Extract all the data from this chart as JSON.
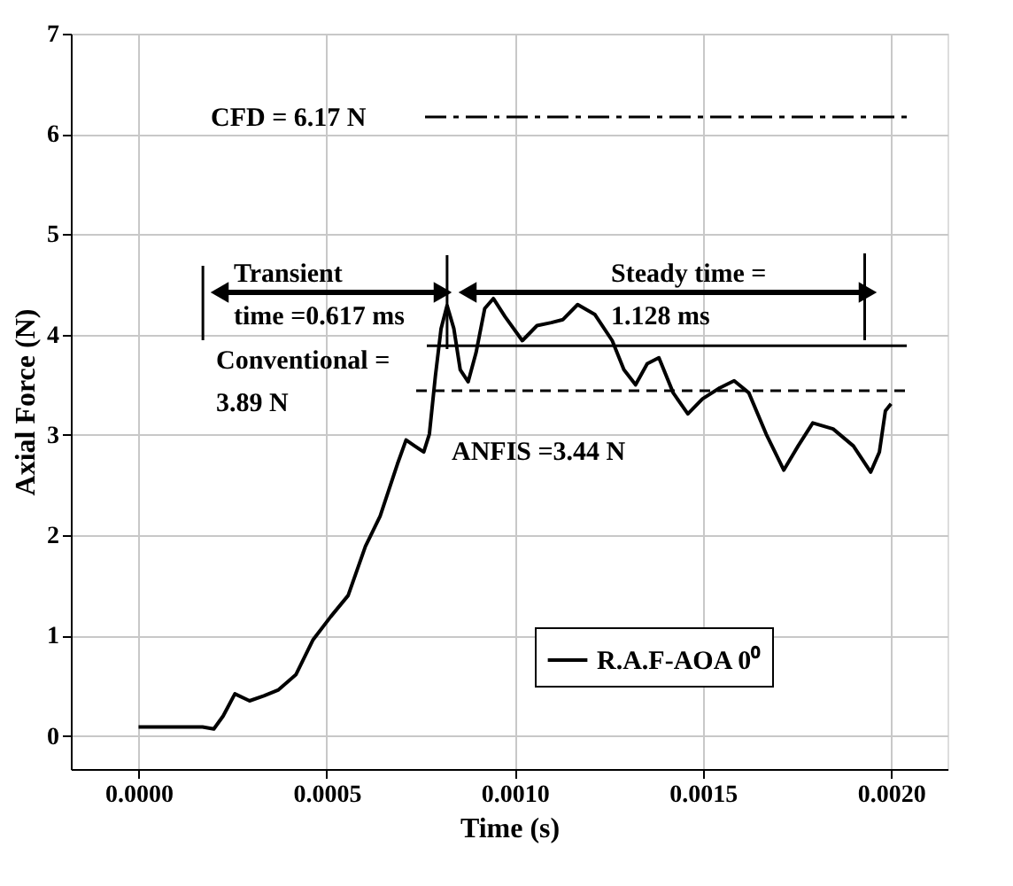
{
  "chart_data": {
    "type": "line",
    "xlabel": "Time (s)",
    "ylabel": "Axial Force (N)",
    "xlim": [
      -0.00018,
      0.00215
    ],
    "ylim": [
      -0.33,
      7
    ],
    "xticks": [
      {
        "value": 0,
        "label": "0.0000"
      },
      {
        "value": 0.0005,
        "label": "0.0005"
      },
      {
        "value": 0.001,
        "label": "0.0010"
      },
      {
        "value": 0.0015,
        "label": "0.0015"
      },
      {
        "value": 0.002,
        "label": "0.0020"
      }
    ],
    "yticks": [
      0,
      1,
      2,
      3,
      4,
      5,
      6,
      7
    ],
    "grid": true,
    "legend": "bottom right",
    "line_style": "solid",
    "marker": "none",
    "series": [
      {
        "name": "R.A.F-AOA 0⁰",
        "color": "#000000",
        "x": [
          0,
          0.00017,
          0.0002,
          0.000225,
          0.000256,
          0.000295,
          0.000333,
          0.000372,
          0.000418,
          0.000464,
          0.000511,
          0.000557,
          0.000603,
          0.000642,
          0.000688,
          0.000711,
          0.000734,
          0.000758,
          0.000773,
          0.000789,
          0.000804,
          0.00082,
          0.000838,
          0.000855,
          0.000876,
          0.000897,
          0.00092,
          0.000943,
          0.000974,
          0.00102,
          0.001059,
          0.001097,
          0.001128,
          0.001167,
          0.001213,
          0.001259,
          0.00129,
          0.001321,
          0.001352,
          0.001383,
          0.001421,
          0.00146,
          0.001499,
          0.001545,
          0.001583,
          0.001622,
          0.001668,
          0.001715,
          0.001753,
          0.001792,
          0.001846,
          0.0019,
          0.001946,
          0.001969,
          0.001985,
          0.002
        ],
        "values": [
          0.09,
          0.09,
          0.07,
          0.2,
          0.42,
          0.35,
          0.4,
          0.46,
          0.61,
          0.96,
          1.19,
          1.4,
          1.89,
          2.19,
          2.71,
          2.95,
          2.89,
          2.83,
          3.01,
          3.59,
          4.06,
          4.29,
          4.06,
          3.65,
          3.53,
          3.82,
          4.26,
          4.36,
          4.18,
          3.94,
          4.09,
          4.12,
          4.15,
          4.3,
          4.2,
          3.94,
          3.65,
          3.5,
          3.71,
          3.77,
          3.42,
          3.21,
          3.36,
          3.47,
          3.54,
          3.42,
          3.01,
          2.65,
          2.89,
          3.12,
          3.06,
          2.89,
          2.63,
          2.83,
          3.24,
          3.31
        ]
      }
    ],
    "ref_lines": [
      {
        "axis": "y",
        "value": 6.17,
        "label": "CFD = 6.17 N",
        "line_style": "dashdot"
      },
      {
        "axis": "y",
        "value": 3.89,
        "label": "Conventional =\n3.89 N",
        "line_style": "solid"
      },
      {
        "axis": "y",
        "value": 3.44,
        "label": "ANFIS =3.44 N",
        "line_style": "dashed"
      },
      {
        "axis": "x",
        "value": 0.000171,
        "line_style": "solid"
      },
      {
        "axis": "x",
        "value": 0.00082,
        "line_style": "solid"
      },
      {
        "axis": "x",
        "value": 0.00193,
        "line_style": "solid"
      }
    ],
    "annotations": [
      "Transient\ntime =0.617 ms",
      "Steady time =\n1.128 ms"
    ]
  }
}
